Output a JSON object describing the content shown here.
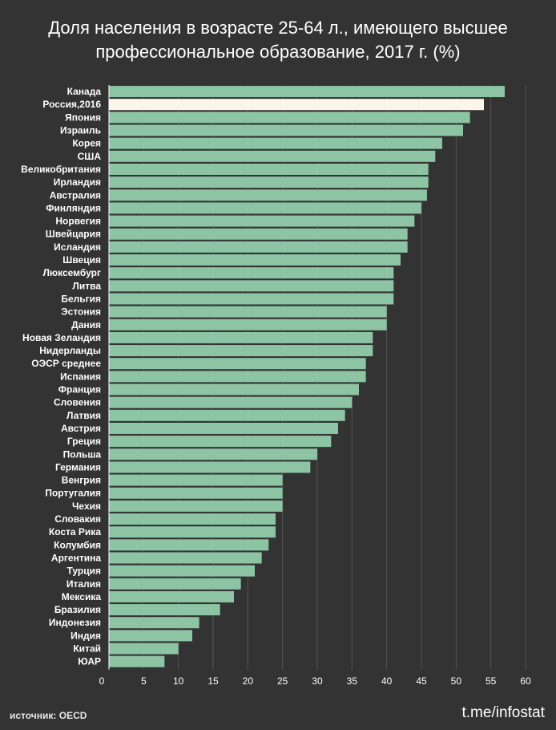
{
  "chart_data": {
    "type": "bar",
    "orientation": "horizontal",
    "title_line1": "Доля населения в возрасте 25-64 л., имеющего высшее",
    "title_line2": "профессиональное образование, 2017 г. (%)",
    "categories": [
      "Канада",
      "Россия,2016",
      "Япония",
      "Израиль",
      "Корея",
      "США",
      "Великобритания",
      "Ирландия",
      "Австралия",
      "Финляндия",
      "Норвегия",
      "Швейцария",
      "Исландия",
      "Швеция",
      "Люксембург",
      "Литва",
      "Бельгия",
      "Эстония",
      "Дания",
      "Новая Зеландия",
      "Нидерланды",
      "ОЭСР среднее",
      "Испания",
      "Франция",
      "Словения",
      "Латвия",
      "Австрия",
      "Греция",
      "Польша",
      "Германия",
      "Венгрия",
      "Португалия",
      "Чехия",
      "Словакия",
      "Коста Рика",
      "Колумбия",
      "Аргентина",
      "Турция",
      "Италия",
      "Мексика",
      "Бразилия",
      "Индонезия",
      "Индия",
      "Китай",
      "ЮАР"
    ],
    "values": [
      57,
      54,
      52,
      51,
      48,
      47,
      46,
      46,
      45.8,
      45,
      44,
      43,
      43,
      42,
      41,
      41,
      41,
      40,
      40,
      38,
      38,
      37,
      37,
      36,
      35,
      34,
      33,
      32,
      30,
      29,
      25,
      25,
      25,
      24,
      24,
      23,
      22,
      21,
      19,
      18,
      16,
      13,
      12,
      10,
      8
    ],
    "highlight_index": 1,
    "xlim": [
      0,
      60
    ],
    "xticks": [
      0,
      5,
      10,
      15,
      20,
      25,
      30,
      35,
      40,
      45,
      50,
      55,
      60
    ],
    "xlabel": "",
    "ylabel": "",
    "grid": true
  },
  "colors": {
    "background": "#333333",
    "bar": "#8cc4a4",
    "highlight": "#fcf5ec",
    "grid": "#555555"
  },
  "footer": {
    "source": "источник: OECD",
    "channel": "t.me/infostat"
  }
}
